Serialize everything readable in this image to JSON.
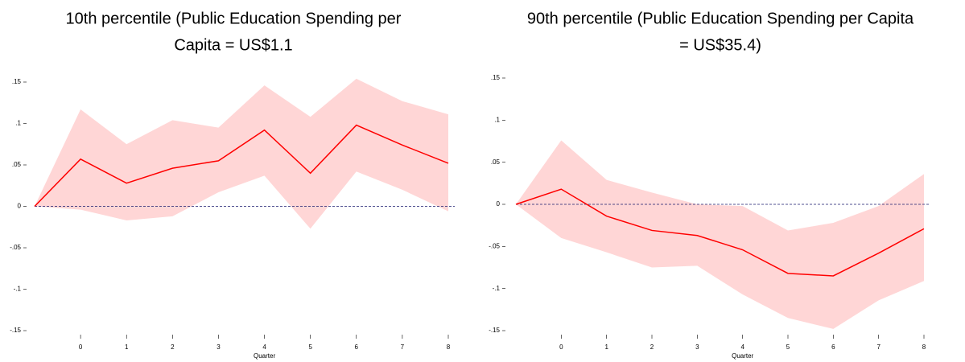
{
  "chart_data": [
    {
      "type": "line-band",
      "title": [
        "10th percentile (Public Education Spending per",
        "Capita = US$1.1"
      ],
      "x_label": "Quarter",
      "x": [
        -1,
        0,
        1,
        2,
        3,
        4,
        5,
        6,
        7,
        8
      ],
      "values": [
        0,
        0.057,
        0.028,
        0.046,
        0.055,
        0.092,
        0.04,
        0.098,
        0.074,
        0.052
      ],
      "upper": [
        0,
        0.117,
        0.075,
        0.104,
        0.095,
        0.146,
        0.108,
        0.154,
        0.127,
        0.111
      ],
      "lower": [
        0,
        -0.004,
        -0.017,
        -0.012,
        0.017,
        0.037,
        -0.027,
        0.042,
        0.02,
        -0.006
      ],
      "color": "#ff0000",
      "band_color": "#ffd6d6",
      "xlim": [
        -1,
        8
      ],
      "xticks": [
        0,
        1,
        2,
        3,
        4,
        5,
        6,
        7,
        8
      ],
      "ylim": [
        -0.15,
        0.15
      ],
      "yticks": [
        {
          "value": -0.15,
          "label": "-.15"
        },
        {
          "value": -0.1,
          "label": "-.1"
        },
        {
          "value": -0.05,
          "label": "-.05"
        },
        0,
        {
          "value": 0.05,
          "label": ".05"
        },
        {
          "value": 0.1,
          "label": ".1"
        },
        {
          "value": 0.15,
          "label": ".15"
        }
      ]
    },
    {
      "type": "line-band",
      "title": [
        "90th percentile (Public Education Spending per Capita",
        "= US$35.4)"
      ],
      "x_label": "Quarter",
      "x": [
        -1,
        0,
        1,
        2,
        3,
        4,
        5,
        6,
        7,
        8
      ],
      "values": [
        0,
        0.018,
        -0.014,
        -0.031,
        -0.037,
        -0.054,
        -0.082,
        -0.085,
        -0.058,
        -0.029
      ],
      "upper": [
        0,
        0.076,
        0.029,
        0.014,
        0.0,
        -0.002,
        -0.031,
        -0.022,
        -0.002,
        0.036
      ],
      "lower": [
        0,
        -0.04,
        -0.057,
        -0.075,
        -0.073,
        -0.107,
        -0.135,
        -0.148,
        -0.114,
        -0.091
      ],
      "color": "#ff0000",
      "band_color": "#ffd6d6",
      "xlim": [
        -1,
        8
      ],
      "xticks": [
        0,
        1,
        2,
        3,
        4,
        5,
        6,
        7,
        8
      ],
      "ylim": [
        -0.15,
        0.15
      ],
      "yticks": [
        {
          "value": -0.15,
          "label": "-.15"
        },
        {
          "value": -0.1,
          "label": "-.1"
        },
        {
          "value": -0.05,
          "label": "-.05"
        },
        0,
        {
          "value": 0.05,
          "label": ".05"
        },
        {
          "value": 0.1,
          "label": ".1"
        },
        {
          "value": 0.15,
          "label": ".15"
        }
      ]
    }
  ]
}
